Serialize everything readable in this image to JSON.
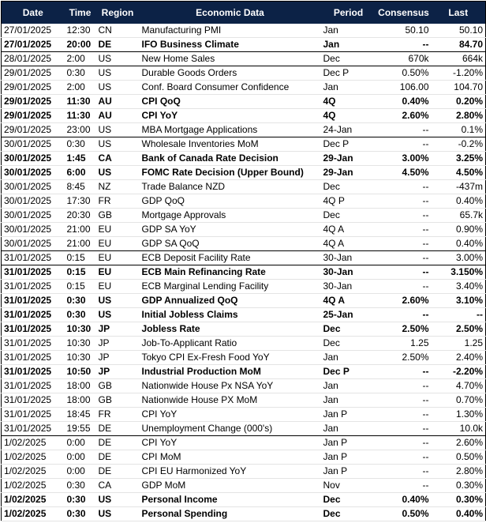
{
  "table": {
    "header": [
      "Date",
      "Time",
      "Region",
      "Economic Data",
      "Period",
      "Consensus",
      "Last"
    ],
    "rows": [
      [
        "27/01/2025",
        "12:30",
        "CN",
        "Manufacturing PMI",
        "Jan",
        "50.10",
        "50.10"
      ],
      [
        "27/01/2025",
        "20:00",
        "DE",
        "IFO Business Climate",
        "Jan",
        "--",
        "84.70"
      ],
      [
        "28/01/2025",
        "2:00",
        "US",
        "New Home Sales",
        "Dec",
        "670k",
        "664k"
      ],
      [
        "29/01/2025",
        "0:30",
        "US",
        "Durable Goods Orders",
        "Dec P",
        "0.50%",
        "-1.20%"
      ],
      [
        "29/01/2025",
        "2:00",
        "US",
        "Conf. Board Consumer Confidence",
        "Jan",
        "106.00",
        "104.70"
      ],
      [
        "29/01/2025",
        "11:30",
        "AU",
        "CPI QoQ",
        "4Q",
        "0.40%",
        "0.20%"
      ],
      [
        "29/01/2025",
        "11:30",
        "AU",
        "CPI YoY",
        "4Q",
        "2.60%",
        "2.80%"
      ],
      [
        "29/01/2025",
        "23:00",
        "US",
        "MBA Mortgage Applications",
        "24-Jan",
        "--",
        "0.1%"
      ],
      [
        "30/01/2025",
        "0:30",
        "US",
        "Wholesale Inventories MoM",
        "Dec P",
        "--",
        "-0.2%"
      ],
      [
        "30/01/2025",
        "1:45",
        "CA",
        "Bank of Canada Rate Decision",
        "29-Jan",
        "3.00%",
        "3.25%"
      ],
      [
        "30/01/2025",
        "6:00",
        "US",
        "FOMC Rate Decision (Upper Bound)",
        "29-Jan",
        "4.50%",
        "4.50%"
      ],
      [
        "30/01/2025",
        "8:45",
        "NZ",
        "Trade Balance NZD",
        "Dec",
        "--",
        "-437m"
      ],
      [
        "30/01/2025",
        "17:30",
        "FR",
        "GDP QoQ",
        "4Q P",
        "--",
        "0.40%"
      ],
      [
        "30/01/2025",
        "20:30",
        "GB",
        "Mortgage Approvals",
        "Dec",
        "--",
        "65.7k"
      ],
      [
        "30/01/2025",
        "21:00",
        "EU",
        "GDP SA YoY",
        "4Q A",
        "--",
        "0.90%"
      ],
      [
        "30/01/2025",
        "21:00",
        "EU",
        "GDP SA QoQ",
        "4Q A",
        "--",
        "0.40%"
      ],
      [
        "31/01/2025",
        "0:15",
        "EU",
        "ECB Deposit Facility Rate",
        "30-Jan",
        "--",
        "3.00%"
      ],
      [
        "31/01/2025",
        "0:15",
        "EU",
        "ECB Main Refinancing Rate",
        "30-Jan",
        "--",
        "3.150%"
      ],
      [
        "31/01/2025",
        "0:15",
        "EU",
        "ECB Marginal Lending Facility",
        "30-Jan",
        "--",
        "3.40%"
      ],
      [
        "31/01/2025",
        "0:30",
        "US",
        "GDP Annualized QoQ",
        "4Q A",
        "2.60%",
        "3.10%"
      ],
      [
        "31/01/2025",
        "0:30",
        "US",
        "Initial Jobless Claims",
        "25-Jan",
        "--",
        "--"
      ],
      [
        "31/01/2025",
        "10:30",
        "JP",
        "Jobless Rate",
        "Dec",
        "2.50%",
        "2.50%"
      ],
      [
        "31/01/2025",
        "10:30",
        "JP",
        "Job-To-Applicant Ratio",
        "Dec",
        "1.25",
        "1.25"
      ],
      [
        "31/01/2025",
        "10:30",
        "JP",
        "Tokyo CPI Ex-Fresh Food YoY",
        "Jan",
        "2.50%",
        "2.40%"
      ],
      [
        "31/01/2025",
        "10:50",
        "JP",
        "Industrial Production MoM",
        "Dec P",
        "--",
        "-2.20%"
      ],
      [
        "31/01/2025",
        "18:00",
        "GB",
        "Nationwide House Px NSA YoY",
        "Jan",
        "--",
        "4.70%"
      ],
      [
        "31/01/2025",
        "18:00",
        "GB",
        "Nationwide House PX MoM",
        "Jan",
        "--",
        "0.70%"
      ],
      [
        "31/01/2025",
        "18:45",
        "FR",
        "CPI YoY",
        "Jan P",
        "--",
        "1.30%"
      ],
      [
        "31/01/2025",
        "19:55",
        "DE",
        "Unemployment Change (000's)",
        "Jan",
        "--",
        "10.0k"
      ],
      [
        "1/02/2025",
        "0:00",
        "DE",
        "CPI YoY",
        "Jan P",
        "--",
        "2.60%"
      ],
      [
        "1/02/2025",
        "0:00",
        "DE",
        "CPI MoM",
        "Jan P",
        "--",
        "0.50%"
      ],
      [
        "1/02/2025",
        "0:00",
        "DE",
        "CPI EU Harmonized YoY",
        "Jan P",
        "--",
        "2.80%"
      ],
      [
        "1/02/2025",
        "0:30",
        "CA",
        "GDP MoM",
        "Nov",
        "--",
        "0.30%"
      ],
      [
        "1/02/2025",
        "0:30",
        "US",
        "Personal Income",
        "Dec",
        "0.40%",
        "0.30%"
      ],
      [
        "1/02/2025",
        "0:30",
        "US",
        "Personal Spending",
        "Dec",
        "0.50%",
        "0.40%"
      ]
    ]
  }
}
